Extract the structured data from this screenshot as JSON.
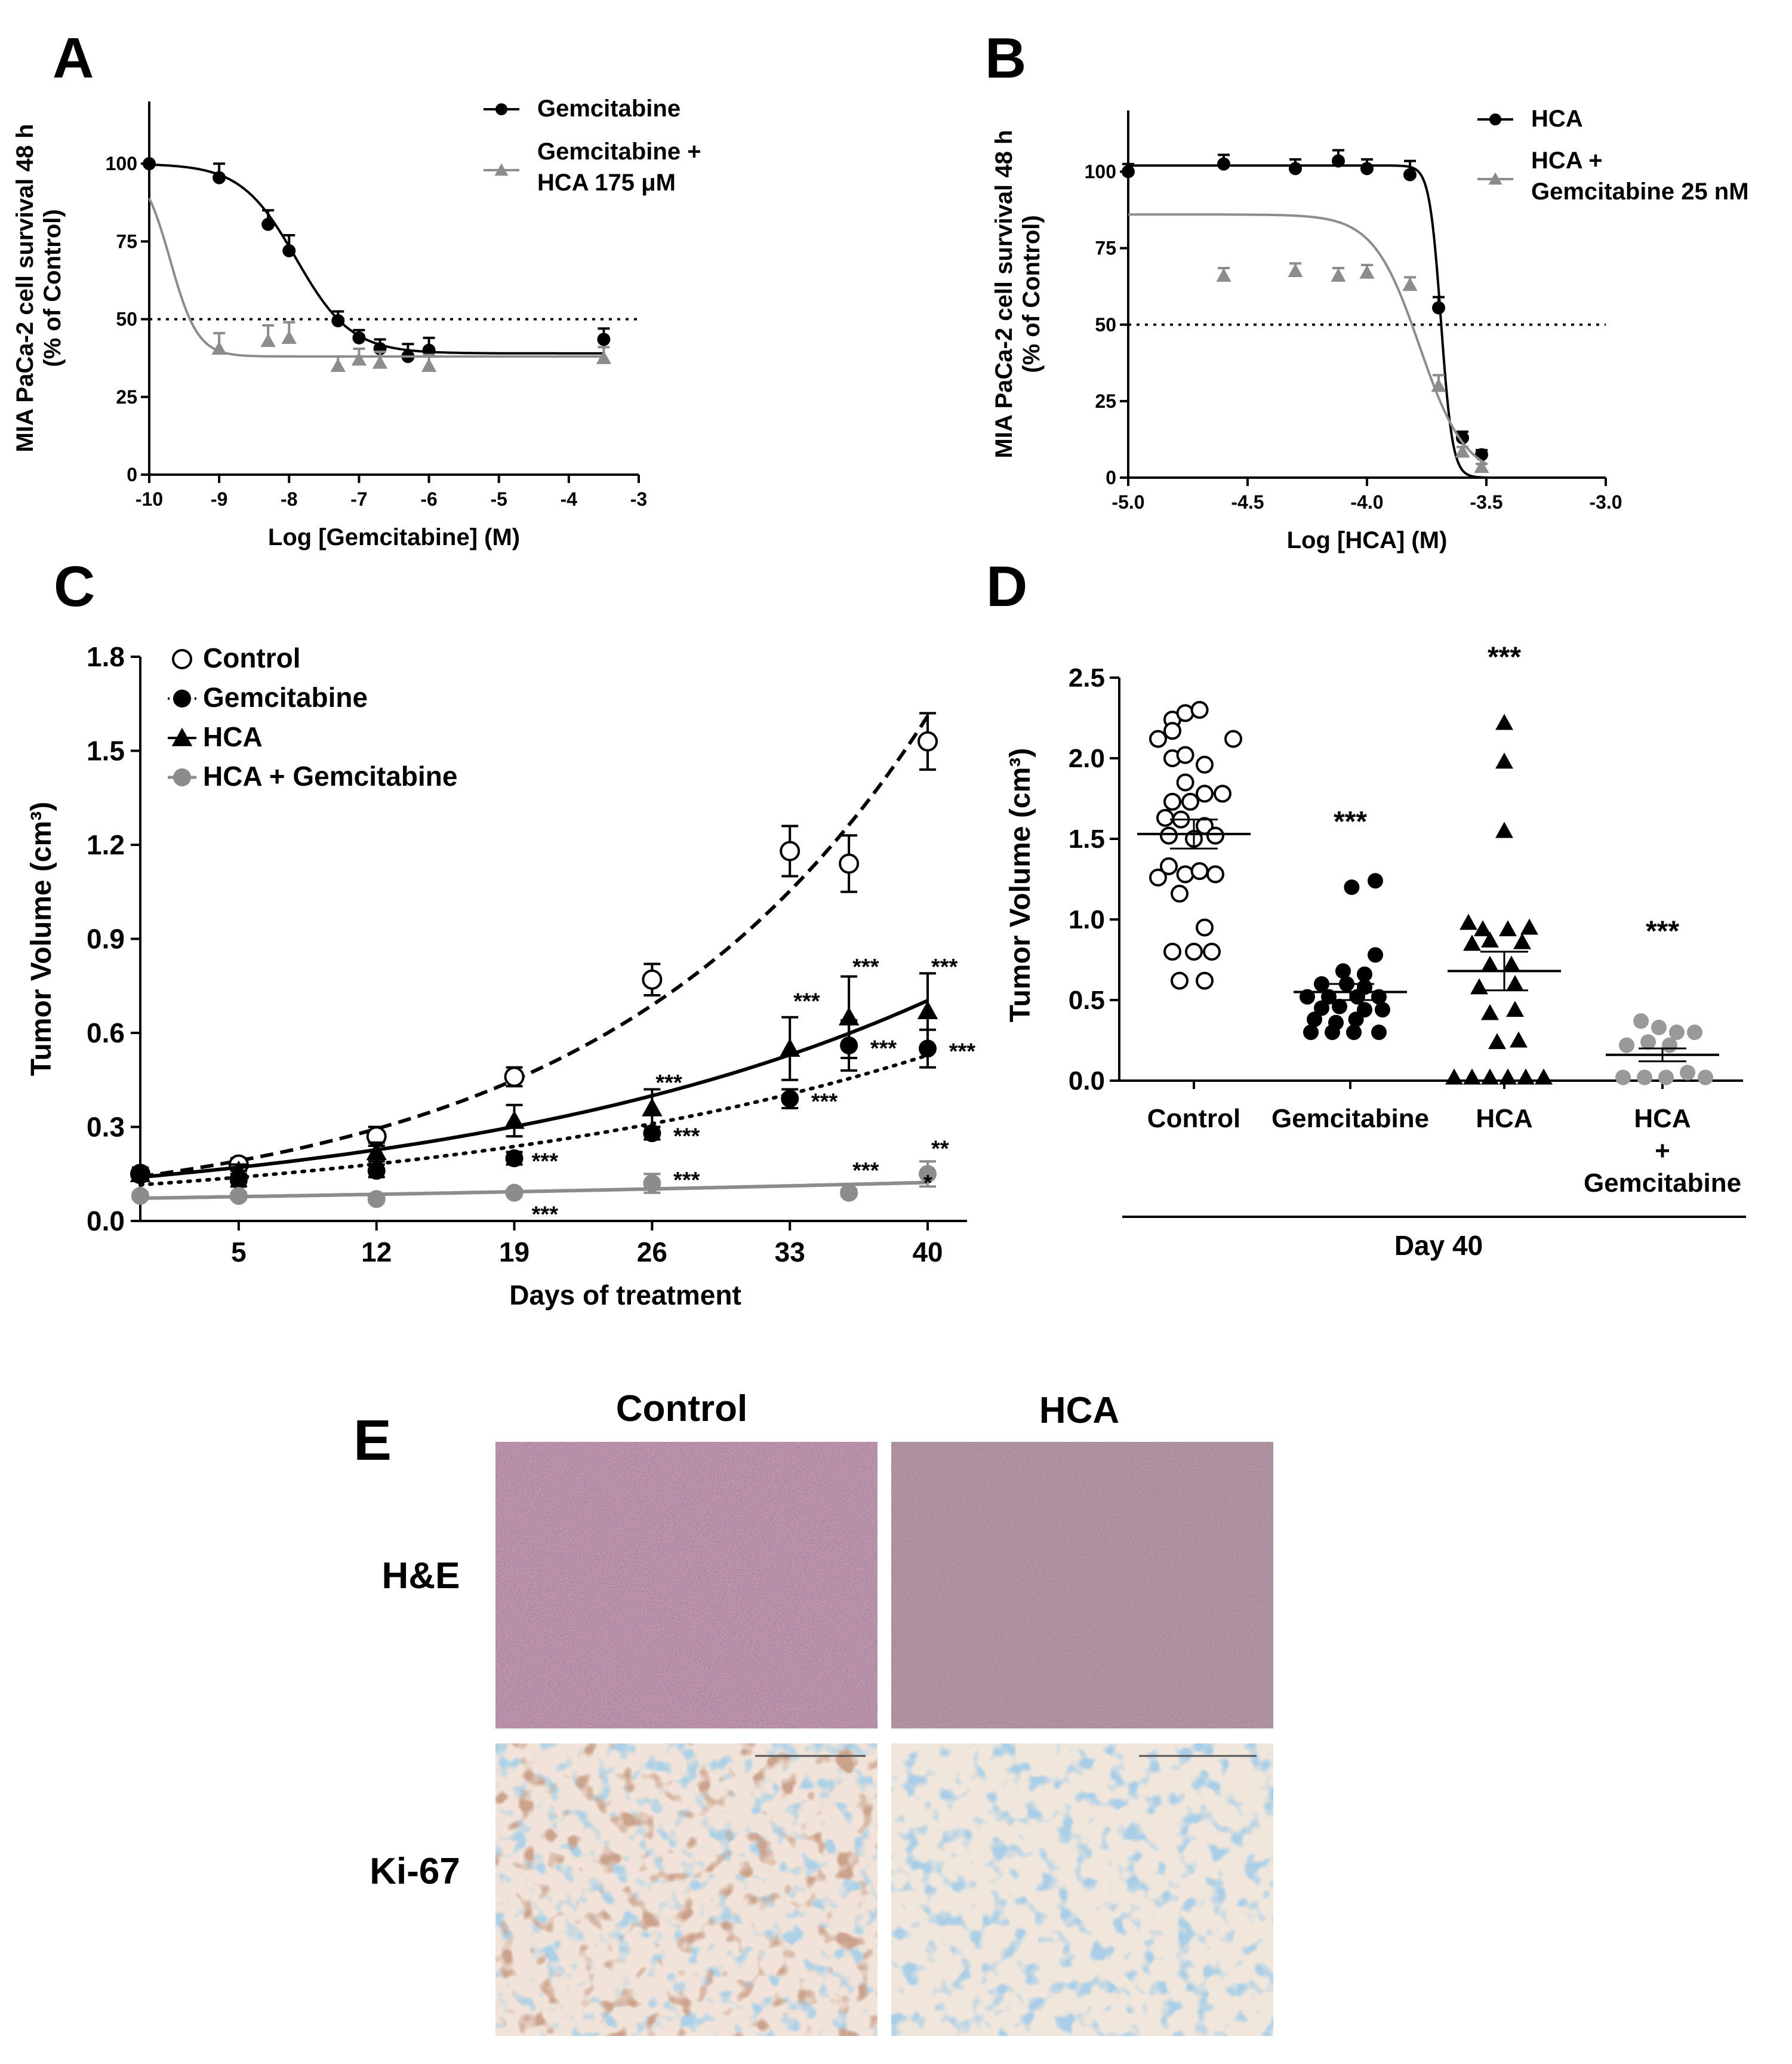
{
  "panels": [
    {
      "letter": "A"
    },
    {
      "letter": "B"
    },
    {
      "letter": "C"
    },
    {
      "letter": "D"
    },
    {
      "letter": "E"
    }
  ],
  "colors": {
    "black": "#000000",
    "gray": "#8c8c8c",
    "dots": "#999999"
  },
  "chart_data": [
    {
      "panel": "A",
      "type": "line",
      "xlabel": "Log [Gemcitabine] (M)",
      "ylabel": [
        "MIA PaCa-2 cell survival 48 h",
        "(% of Control)"
      ],
      "xlim": [
        -10,
        -3
      ],
      "ylim": [
        0,
        120
      ],
      "xticks": [
        "-10",
        "-9",
        "-8",
        "-7",
        "-6",
        "-5",
        "-4",
        "-3"
      ],
      "yticks": [
        "0",
        "25",
        "50",
        "75",
        "100"
      ],
      "reference_line_y": 50,
      "series": [
        {
          "name": "Gemcitabine",
          "marker": "filled-circle",
          "color": "#000000",
          "x": [
            -10,
            -9,
            -8.3,
            -8,
            -7.3,
            -7,
            -6.7,
            -6.3,
            -6,
            -3.5
          ],
          "y": [
            100,
            95.5,
            80.5,
            72,
            49.5,
            44,
            40.5,
            38,
            40,
            43.5
          ],
          "err": [
            0,
            4.5,
            4.5,
            5,
            3,
            2.5,
            3,
            4,
            4,
            3.5
          ],
          "curve": {
            "bottom": 39,
            "top": 100,
            "logec50": -7.9,
            "hill": 1.1
          }
        },
        {
          "name_lines": [
            "Gemcitabine +",
            "HCA 175 μM"
          ],
          "marker": "filled-triangle",
          "color": "#8c8c8c",
          "x": [
            -9,
            -8.3,
            -8,
            -7.3,
            -7,
            -6.7,
            -6,
            -3.5
          ],
          "y": [
            40.5,
            43,
            44,
            35,
            37,
            36,
            35,
            37.5
          ],
          "err": [
            5,
            5,
            5,
            3,
            3.5,
            3.5,
            3.5,
            3.5
          ],
          "curve": {
            "bottom": 38,
            "top": 100,
            "logec50": -9.7,
            "hill": 2.2
          }
        }
      ]
    },
    {
      "panel": "B",
      "type": "line",
      "xlabel": "Log [HCA] (M)",
      "ylabel": [
        "MIA PaCa-2 cell survival 48 h",
        "(% of Control)"
      ],
      "xlim": [
        -5.0,
        -3.0
      ],
      "ylim": [
        0,
        120
      ],
      "xticks": [
        "-5.0",
        "-4.5",
        "-4.0",
        "-3.5",
        "-3.0"
      ],
      "yticks": [
        "0",
        "25",
        "50",
        "75",
        "100"
      ],
      "reference_line_y": 50,
      "series": [
        {
          "name": "HCA",
          "marker": "filled-circle",
          "color": "#000000",
          "x": [
            -5.0,
            -4.6,
            -4.3,
            -4.12,
            -4.0,
            -3.82,
            -3.7,
            -3.6,
            -3.52
          ],
          "y": [
            100,
            102.5,
            101,
            103.5,
            101,
            99,
            55.5,
            13,
            7.5
          ],
          "err": [
            2.5,
            3,
            3,
            3.5,
            3,
            4.5,
            3.5,
            2,
            1.5
          ],
          "curve": {
            "bottom": 0,
            "top": 102,
            "logec50": -3.69,
            "hill": 18
          }
        },
        {
          "name_lines": [
            "HCA +",
            "Gemcitabine 25 nM"
          ],
          "marker": "filled-triangle",
          "color": "#8c8c8c",
          "x": [
            -4.6,
            -4.3,
            -4.12,
            -4.0,
            -3.82,
            -3.7,
            -3.6,
            -3.52
          ],
          "y": [
            66,
            67.5,
            66,
            67,
            63,
            30,
            8.5,
            3.5
          ],
          "err": [
            2.5,
            2.5,
            2.5,
            2.5,
            2.5,
            3.5,
            1.5,
            1
          ],
          "curve": {
            "bottom": 0,
            "top": 86,
            "logec50": -3.78,
            "hill": 4.5
          }
        }
      ]
    },
    {
      "panel": "C",
      "type": "line",
      "xlabel": "Days of treatment",
      "ylabel": "Tumor Volume (cm³)",
      "xlim": [
        0,
        42
      ],
      "ylim": [
        0,
        1.8
      ],
      "xticks": [
        "5",
        "12",
        "19",
        "26",
        "33",
        "40"
      ],
      "yticks": [
        "0.0",
        "0.3",
        "0.6",
        "0.9",
        "1.2",
        "1.5",
        "1.8"
      ],
      "series": [
        {
          "name": "Control",
          "marker": "open-circle",
          "color": "#000000",
          "line": "dashed",
          "x": [
            0,
            5,
            12,
            19,
            26,
            33,
            36,
            40
          ],
          "y": [
            0.15,
            0.18,
            0.27,
            0.46,
            0.77,
            1.18,
            1.14,
            1.53
          ],
          "err": [
            0.02,
            0.02,
            0.03,
            0.03,
            0.05,
            0.08,
            0.09,
            0.09
          ]
        },
        {
          "name": "Gemcitabine",
          "marker": "filled-circle",
          "color": "#000000",
          "line": "dotted",
          "x": [
            0,
            5,
            12,
            19,
            26,
            33,
            36,
            40
          ],
          "y": [
            0.15,
            0.13,
            0.16,
            0.2,
            0.28,
            0.39,
            0.56,
            0.55
          ],
          "err": [
            0.02,
            0.02,
            0.02,
            0.02,
            0.02,
            0.03,
            0.08,
            0.06
          ]
        },
        {
          "name": "HCA",
          "marker": "filled-triangle",
          "color": "#000000",
          "line": "solid",
          "x": [
            0,
            5,
            12,
            19,
            26,
            33,
            36,
            40
          ],
          "y": [
            0.15,
            0.16,
            0.22,
            0.32,
            0.36,
            0.55,
            0.65,
            0.67
          ],
          "err": [
            0.02,
            0.02,
            0.03,
            0.05,
            0.06,
            0.1,
            0.13,
            0.12
          ]
        },
        {
          "name": "HCA + Gemcitabine",
          "marker": "gray-circle",
          "color": "#8c8c8c",
          "line": "solid",
          "x": [
            0,
            5,
            12,
            19,
            26,
            36,
            40
          ],
          "y": [
            0.08,
            0.08,
            0.07,
            0.09,
            0.12,
            0.09,
            0.15
          ],
          "err": [
            0.01,
            0.01,
            0.01,
            0.01,
            0.03,
            0.01,
            0.04
          ]
        }
      ],
      "annotations": [
        {
          "text": "***",
          "x": 26,
          "y": 0.44
        },
        {
          "text": "***",
          "x": 26.9,
          "y": 0.27
        },
        {
          "text": "***",
          "x": 33,
          "y": 0.7
        },
        {
          "text": "***",
          "x": 33.9,
          "y": 0.38
        },
        {
          "text": "***",
          "x": 36,
          "y": 0.81
        },
        {
          "text": "***",
          "x": 36.9,
          "y": 0.55
        },
        {
          "text": "***",
          "x": 40,
          "y": 0.81
        },
        {
          "text": "***",
          "x": 40.9,
          "y": 0.54
        },
        {
          "text": "***",
          "x": 19.7,
          "y": 0.19
        },
        {
          "text": "***",
          "x": 19.7,
          "y": 0.02
        },
        {
          "text": "***",
          "x": 26.9,
          "y": 0.13
        },
        {
          "text": "***",
          "x": 36,
          "y": 0.16
        },
        {
          "text": "**",
          "x": 40,
          "y": 0.23
        },
        {
          "text": "*",
          "x": 39.6,
          "y": 0.12
        }
      ]
    },
    {
      "panel": "D",
      "type": "scatter",
      "ylabel": "Tumor Volume (cm³)",
      "ylim": [
        0,
        2.5
      ],
      "yticks": [
        "0.0",
        "0.5",
        "1.0",
        "1.5",
        "2.0",
        "2.5"
      ],
      "categories": [
        "Control",
        "Gemcitabine",
        "HCA",
        [
          "HCA",
          "+",
          "Gemcitabine"
        ]
      ],
      "group_label": "Day 40",
      "groups": [
        {
          "name": "Control",
          "marker": "open-circle",
          "color": "#000000",
          "mean": 1.53,
          "sem": 0.09,
          "stars": "",
          "points": [
            [
              -50,
              2.12
            ],
            [
              -30,
              2.24
            ],
            [
              -12,
              2.28
            ],
            [
              8,
              2.3
            ],
            [
              -30,
              2.17
            ],
            [
              55,
              2.12
            ],
            [
              -30,
              2.0
            ],
            [
              -12,
              2.02
            ],
            [
              15,
              1.96
            ],
            [
              -12,
              1.85
            ],
            [
              40,
              1.78
            ],
            [
              15,
              1.78
            ],
            [
              -30,
              1.73
            ],
            [
              -5,
              1.73
            ],
            [
              -40,
              1.63
            ],
            [
              -18,
              1.62
            ],
            [
              15,
              1.58
            ],
            [
              30,
              1.52
            ],
            [
              -35,
              1.52
            ],
            [
              0,
              1.5
            ],
            [
              -35,
              1.33
            ],
            [
              -12,
              1.28
            ],
            [
              8,
              1.3
            ],
            [
              -50,
              1.26
            ],
            [
              30,
              1.28
            ],
            [
              -20,
              1.16
            ],
            [
              15,
              0.95
            ],
            [
              -30,
              0.8
            ],
            [
              0,
              0.8
            ],
            [
              25,
              0.8
            ],
            [
              -20,
              0.62
            ],
            [
              15,
              0.62
            ]
          ]
        },
        {
          "name": "Gemcitabine",
          "marker": "filled-circle",
          "color": "#000000",
          "mean": 0.55,
          "sem": 0.05,
          "stars": "***",
          "points": [
            [
              2,
              1.2
            ],
            [
              35,
              1.24
            ],
            [
              35,
              0.78
            ],
            [
              -10,
              0.68
            ],
            [
              20,
              0.66
            ],
            [
              -40,
              0.6
            ],
            [
              -5,
              0.6
            ],
            [
              20,
              0.58
            ],
            [
              -60,
              0.52
            ],
            [
              -30,
              0.52
            ],
            [
              10,
              0.52
            ],
            [
              40,
              0.52
            ],
            [
              -40,
              0.45
            ],
            [
              -15,
              0.46
            ],
            [
              20,
              0.44
            ],
            [
              45,
              0.44
            ],
            [
              -50,
              0.38
            ],
            [
              -20,
              0.36
            ],
            [
              8,
              0.38
            ],
            [
              -55,
              0.3
            ],
            [
              -25,
              0.3
            ],
            [
              5,
              0.3
            ],
            [
              40,
              0.3
            ]
          ]
        },
        {
          "name": "HCA",
          "marker": "filled-triangle",
          "color": "#000000",
          "mean": 0.68,
          "sem": 0.12,
          "stars": "***",
          "points": [
            [
              0,
              2.22
            ],
            [
              0,
              1.98
            ],
            [
              0,
              1.55
            ],
            [
              -50,
              0.98
            ],
            [
              -30,
              0.94
            ],
            [
              5,
              0.94
            ],
            [
              35,
              0.95
            ],
            [
              -45,
              0.85
            ],
            [
              -20,
              0.87
            ],
            [
              25,
              0.86
            ],
            [
              -20,
              0.72
            ],
            [
              10,
              0.72
            ],
            [
              -35,
              0.58
            ],
            [
              15,
              0.6
            ],
            [
              -20,
              0.42
            ],
            [
              15,
              0.44
            ],
            [
              -10,
              0.24
            ],
            [
              20,
              0.25
            ],
            [
              -70,
              0.02
            ],
            [
              -45,
              0.02
            ],
            [
              -20,
              0.02
            ],
            [
              5,
              0.02
            ],
            [
              30,
              0.02
            ],
            [
              55,
              0.02
            ]
          ]
        },
        {
          "name": "HCA + Gemcitabine",
          "marker": "gray-circle",
          "color": "#999999",
          "mean": 0.16,
          "sem": 0.04,
          "stars": "***",
          "points": [
            [
              -30,
              0.37
            ],
            [
              -5,
              0.33
            ],
            [
              20,
              0.3
            ],
            [
              45,
              0.3
            ],
            [
              -50,
              0.22
            ],
            [
              -20,
              0.24
            ],
            [
              10,
              0.22
            ],
            [
              -55,
              0.02
            ],
            [
              -25,
              0.02
            ],
            [
              5,
              0.02
            ],
            [
              35,
              0.05
            ],
            [
              60,
              0.02
            ]
          ]
        }
      ]
    }
  ],
  "panel_e": {
    "col_labels": [
      "Control",
      "HCA"
    ],
    "row_labels": [
      "H&E",
      "Ki-67"
    ]
  }
}
